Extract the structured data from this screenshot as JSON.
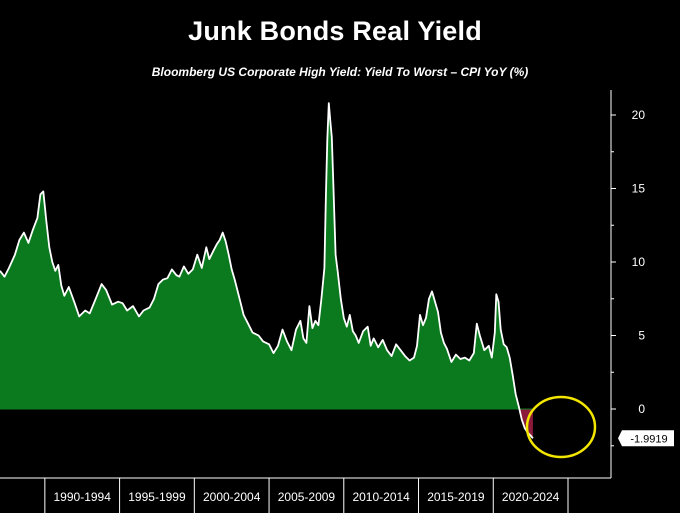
{
  "chart_data": {
    "type": "area",
    "title": "Junk Bonds Real Yield",
    "subtitle": "Bloomberg US Corporate High Yield:  Yield To Worst – CPI YoY (%)",
    "xlabel": "",
    "ylabel": "",
    "x_range": [
      1987.0,
      2025.0
    ],
    "ylim": [
      -3,
      22
    ],
    "y_ticks": [
      0,
      5,
      10,
      15,
      20
    ],
    "x_tick_labels": [
      "1990-1994",
      "1995-1999",
      "2000-2004",
      "2005-2009",
      "2010-2014",
      "2015-2019",
      "2020-2024"
    ],
    "grid": false,
    "legend": "none",
    "colors": {
      "background": "#000000",
      "positive_fill": "#0b7a1f",
      "negative_fill": "#8b1a3a",
      "line": "#ffffff",
      "highlight_circle": "#f2e600"
    },
    "last_value_label": "-1.9919",
    "series": [
      {
        "x": [
          1987.0,
          1987.3,
          1987.6,
          1988.0,
          1988.3,
          1988.6,
          1988.9,
          1989.2,
          1989.5,
          1989.7,
          1989.9,
          1990.1,
          1990.3,
          1990.5,
          1990.7,
          1990.9,
          1991.1,
          1991.3,
          1991.6,
          1992.0,
          1992.3,
          1992.7,
          1993.0,
          1993.4,
          1993.8,
          1994.1,
          1994.5,
          1994.9,
          1995.2,
          1995.5,
          1995.9,
          1996.3,
          1996.6,
          1997.0,
          1997.3,
          1997.6,
          1997.9,
          1998.2,
          1998.5,
          1998.8,
          1999.0,
          1999.3,
          1999.6,
          1999.9,
          2000.2,
          2000.5,
          2000.8,
          2001.0,
          2001.3,
          2001.5,
          2001.7,
          2001.9,
          2002.1,
          2002.3,
          2002.5,
          2002.7,
          2002.9,
          2003.1,
          2003.3,
          2003.6,
          2003.9,
          2004.3,
          2004.6,
          2005.0,
          2005.3,
          2005.6,
          2005.9,
          2006.2,
          2006.5,
          2006.8,
          2007.1,
          2007.3,
          2007.5,
          2007.7,
          2007.9,
          2008.1,
          2008.3,
          2008.5,
          2008.7,
          2008.8,
          2008.9,
          2009.0,
          2009.1,
          2009.2,
          2009.3,
          2009.45,
          2009.6,
          2009.8,
          2010.0,
          2010.2,
          2010.4,
          2010.6,
          2010.8,
          2011.0,
          2011.3,
          2011.6,
          2011.8,
          2012.0,
          2012.3,
          2012.6,
          2012.9,
          2013.2,
          2013.5,
          2013.8,
          2014.1,
          2014.4,
          2014.7,
          2014.9,
          2015.1,
          2015.3,
          2015.5,
          2015.7,
          2015.9,
          2016.1,
          2016.3,
          2016.5,
          2016.7,
          2016.9,
          2017.2,
          2017.5,
          2017.8,
          2018.1,
          2018.4,
          2018.7,
          2018.9,
          2019.1,
          2019.4,
          2019.7,
          2019.9,
          2020.1,
          2020.2,
          2020.35,
          2020.5,
          2020.7,
          2020.9,
          2021.1,
          2021.3,
          2021.5,
          2021.7,
          2021.9,
          2022.1,
          2022.3,
          2022.5,
          2022.65
        ],
        "values": [
          9.4,
          9.0,
          9.6,
          10.5,
          11.5,
          12.0,
          11.3,
          12.2,
          13.0,
          14.6,
          14.8,
          12.8,
          11.0,
          10.0,
          9.4,
          9.8,
          8.4,
          7.7,
          8.3,
          7.2,
          6.3,
          6.7,
          6.5,
          7.5,
          8.5,
          8.1,
          7.1,
          7.3,
          7.2,
          6.7,
          7.0,
          6.3,
          6.7,
          6.9,
          7.5,
          8.5,
          8.8,
          8.9,
          9.5,
          9.1,
          9.0,
          9.7,
          9.2,
          9.5,
          10.5,
          9.6,
          11.0,
          10.2,
          10.8,
          11.2,
          11.5,
          12.0,
          11.4,
          10.5,
          9.5,
          8.8,
          8.0,
          7.2,
          6.4,
          5.8,
          5.2,
          5.0,
          4.6,
          4.4,
          3.8,
          4.3,
          5.4,
          4.6,
          4.0,
          5.4,
          6.0,
          4.8,
          4.5,
          7.0,
          5.5,
          6.0,
          5.7,
          7.5,
          9.6,
          14.5,
          18.3,
          20.8,
          19.6,
          18.5,
          15.4,
          10.5,
          9.3,
          7.5,
          6.2,
          5.6,
          6.4,
          5.3,
          5.0,
          4.5,
          5.3,
          5.6,
          4.3,
          4.8,
          4.2,
          4.7,
          4.0,
          3.6,
          4.4,
          4.0,
          3.6,
          3.3,
          3.5,
          4.3,
          6.4,
          5.7,
          6.2,
          7.5,
          8.0,
          7.3,
          6.6,
          5.2,
          4.5,
          4.1,
          3.2,
          3.7,
          3.4,
          3.5,
          3.3,
          3.8,
          5.8,
          5.0,
          4.0,
          4.3,
          3.5,
          5.2,
          7.8,
          7.3,
          5.4,
          4.4,
          4.2,
          3.5,
          2.3,
          1.0,
          0.2,
          -0.7,
          -1.3,
          -1.6,
          -1.8,
          -1.99
        ]
      }
    ]
  }
}
